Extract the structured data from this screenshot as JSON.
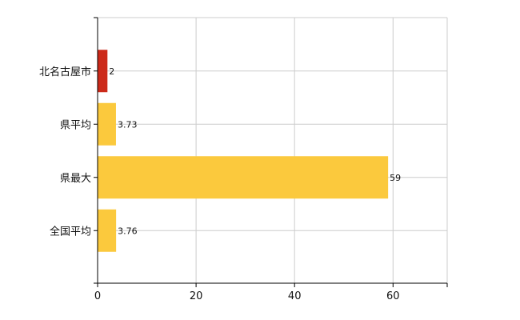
{
  "chart_data": {
    "type": "bar",
    "orientation": "horizontal",
    "categories": [
      "北名古屋市",
      "県平均",
      "県最大",
      "全国平均"
    ],
    "values": [
      2,
      3.73,
      59,
      3.76
    ],
    "value_labels": [
      "2",
      "3.73",
      "59",
      "3.76"
    ],
    "bar_colors": [
      "#cc2a1a",
      "#fbc93d",
      "#fbc93d",
      "#fbc93d"
    ],
    "xlim": [
      0,
      71
    ],
    "xticks": [
      0,
      20,
      40,
      60
    ],
    "xtick_labels": [
      "0",
      "20",
      "40",
      "60"
    ],
    "grid": true,
    "legend": "none",
    "title": "",
    "xlabel": "",
    "ylabel": ""
  }
}
